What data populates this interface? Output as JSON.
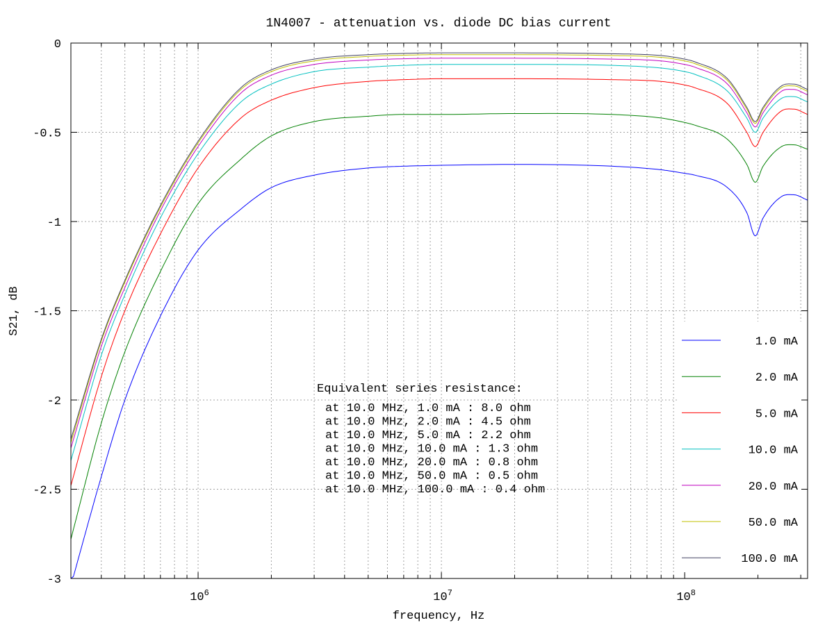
{
  "chart_data": {
    "type": "line",
    "title": "1N4007 - attenuation vs. diode DC bias current",
    "xlabel": "frequency, Hz",
    "ylabel": "S21, dB",
    "x_scale": "log",
    "xlim": [
      300000,
      320000000
    ],
    "ylim": [
      -3,
      0
    ],
    "grid": true,
    "legend_position": "bottom-right",
    "y_ticks": [
      {
        "value": 0,
        "label": "0"
      },
      {
        "value": -0.5,
        "label": "-0.5"
      },
      {
        "value": -1,
        "label": "-1"
      },
      {
        "value": -1.5,
        "label": "-1.5"
      },
      {
        "value": -2,
        "label": "-2"
      },
      {
        "value": -2.5,
        "label": "-2.5"
      },
      {
        "value": -3,
        "label": "-3"
      }
    ],
    "x_ticks": [
      {
        "value": 1000000,
        "base": "10",
        "exp": "6"
      },
      {
        "value": 10000000,
        "base": "10",
        "exp": "7"
      },
      {
        "value": 100000000,
        "base": "10",
        "exp": "8"
      }
    ],
    "x": [
      300000,
      400000,
      500000,
      700000,
      1000000,
      1500000,
      2000000,
      3000000,
      5000000,
      7000000,
      10000000,
      20000000,
      50000000,
      80000000,
      100000000,
      110000000,
      150000000,
      180000000,
      195000000,
      210000000,
      250000000,
      280000000,
      320000000
    ],
    "series": [
      {
        "name": "1.0 mA",
        "color": "#0000ff",
        "values": [
          -3.04,
          -2.43,
          -2.0,
          -1.53,
          -1.16,
          -0.93,
          -0.81,
          -0.74,
          -0.7,
          -0.69,
          -0.685,
          -0.68,
          -0.69,
          -0.71,
          -0.73,
          -0.74,
          -0.81,
          -0.95,
          -1.08,
          -0.98,
          -0.86,
          -0.85,
          -0.88
        ]
      },
      {
        "name": "2.0 mA",
        "color": "#008000",
        "values": [
          -2.78,
          -2.13,
          -1.73,
          -1.28,
          -0.9,
          -0.65,
          -0.52,
          -0.44,
          -0.41,
          -0.4,
          -0.4,
          -0.395,
          -0.4,
          -0.42,
          -0.445,
          -0.46,
          -0.54,
          -0.68,
          -0.78,
          -0.69,
          -0.58,
          -0.57,
          -0.595
        ]
      },
      {
        "name": "5.0 mA",
        "color": "#ff0000",
        "values": [
          -2.48,
          -1.87,
          -1.5,
          -1.07,
          -0.7,
          -0.42,
          -0.32,
          -0.25,
          -0.215,
          -0.205,
          -0.2,
          -0.2,
          -0.205,
          -0.215,
          -0.235,
          -0.25,
          -0.34,
          -0.5,
          -0.58,
          -0.5,
          -0.38,
          -0.37,
          -0.4
        ]
      },
      {
        "name": "10.0 mA",
        "color": "#00c0c0",
        "values": [
          -2.34,
          -1.75,
          -1.41,
          -0.98,
          -0.62,
          -0.33,
          -0.23,
          -0.16,
          -0.135,
          -0.125,
          -0.12,
          -0.12,
          -0.125,
          -0.14,
          -0.16,
          -0.175,
          -0.27,
          -0.42,
          -0.5,
          -0.42,
          -0.31,
          -0.3,
          -0.33
        ]
      },
      {
        "name": "20.0 mA",
        "color": "#c000c0",
        "values": [
          -2.27,
          -1.7,
          -1.37,
          -0.94,
          -0.58,
          -0.28,
          -0.18,
          -0.12,
          -0.095,
          -0.088,
          -0.085,
          -0.085,
          -0.09,
          -0.1,
          -0.12,
          -0.135,
          -0.23,
          -0.39,
          -0.47,
          -0.39,
          -0.27,
          -0.26,
          -0.29
        ]
      },
      {
        "name": "50.0 mA",
        "color": "#c0c000",
        "values": [
          -2.24,
          -1.67,
          -1.34,
          -0.92,
          -0.56,
          -0.26,
          -0.16,
          -0.1,
          -0.075,
          -0.068,
          -0.065,
          -0.065,
          -0.07,
          -0.08,
          -0.1,
          -0.115,
          -0.21,
          -0.37,
          -0.45,
          -0.37,
          -0.25,
          -0.24,
          -0.27
        ]
      },
      {
        "name": "100.0 mA",
        "color": "#404060",
        "values": [
          -2.22,
          -1.66,
          -1.33,
          -0.91,
          -0.55,
          -0.25,
          -0.15,
          -0.09,
          -0.065,
          -0.058,
          -0.055,
          -0.055,
          -0.06,
          -0.07,
          -0.09,
          -0.105,
          -0.2,
          -0.36,
          -0.44,
          -0.36,
          -0.24,
          -0.23,
          -0.26
        ]
      }
    ],
    "annotation": {
      "heading": "Equivalent series resistance:",
      "lines": [
        "at 10.0 MHz, 1.0 mA : 8.0 ohm",
        "at 10.0 MHz, 2.0 mA : 4.5 ohm",
        "at 10.0 MHz, 5.0 mA : 2.2 ohm",
        "at 10.0 MHz, 10.0 mA : 1.3 ohm",
        "at 10.0 MHz, 20.0 mA : 0.8 ohm",
        "at 10.0 MHz, 50.0 mA : 0.5 ohm",
        "at 10.0 MHz, 100.0 mA : 0.4 ohm"
      ]
    }
  }
}
